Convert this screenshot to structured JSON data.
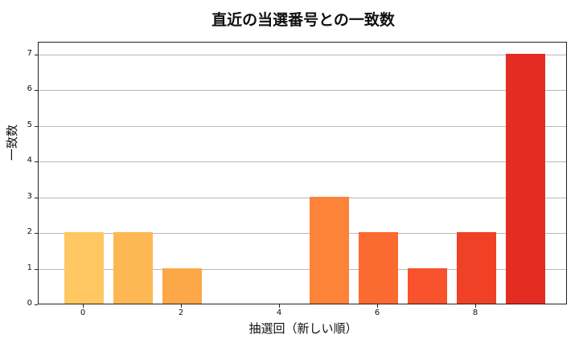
{
  "chart_data": {
    "type": "bar",
    "title": "直近の当選番号との一致数",
    "xlabel": "抽選回（新しい順）",
    "ylabel": "一致数",
    "categories": [
      0,
      1,
      2,
      3,
      4,
      5,
      6,
      7,
      8,
      9
    ],
    "values": [
      2,
      2,
      1,
      0,
      0,
      3,
      2,
      1,
      2,
      7
    ],
    "colors": [
      "#fec762",
      "#feb853",
      "#fda848",
      "#fd9640",
      "#fd8a3b",
      "#fc8337",
      "#fb6a30",
      "#f8532c",
      "#f04126",
      "#e52c22"
    ],
    "xticks": [
      "0",
      "2",
      "4",
      "6",
      "8"
    ],
    "yticks": [
      "0",
      "1",
      "2",
      "3",
      "4",
      "5",
      "6",
      "7"
    ],
    "ylim": [
      0,
      7.35
    ],
    "grid": "y",
    "legend": null
  }
}
